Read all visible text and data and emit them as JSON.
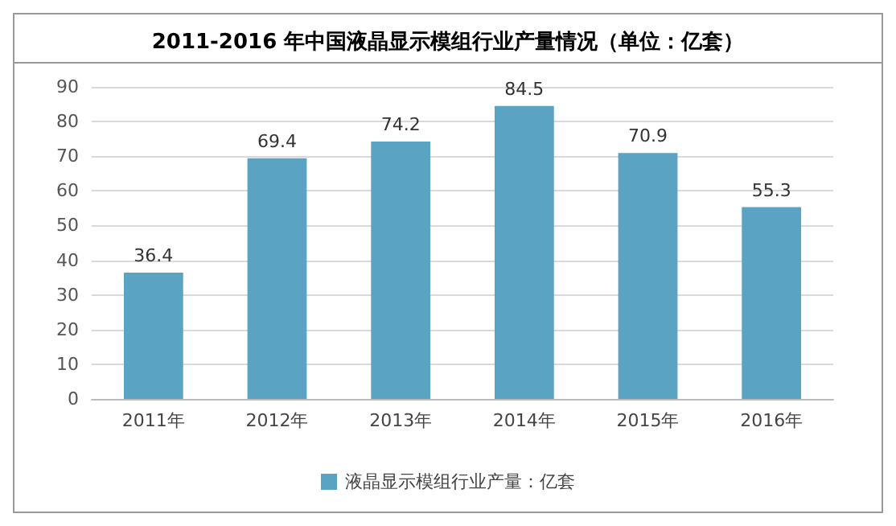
{
  "chart_data": {
    "type": "bar",
    "title": "2011-2016 年中国液晶显示模组行业产量情况（单位：亿套）",
    "categories": [
      "2011年",
      "2012年",
      "2013年",
      "2014年",
      "2015年",
      "2016年"
    ],
    "series": [
      {
        "name": "液晶显示模组行业产量：亿套",
        "color": "#5ba3c3",
        "values": [
          36.4,
          69.4,
          74.2,
          84.5,
          70.9,
          55.3
        ]
      }
    ],
    "ylim": [
      0,
      90
    ],
    "yticks": [
      0,
      10,
      20,
      30,
      40,
      50,
      60,
      70,
      80,
      90
    ],
    "grid": "y",
    "legend": "bottom",
    "data_labels": true
  }
}
